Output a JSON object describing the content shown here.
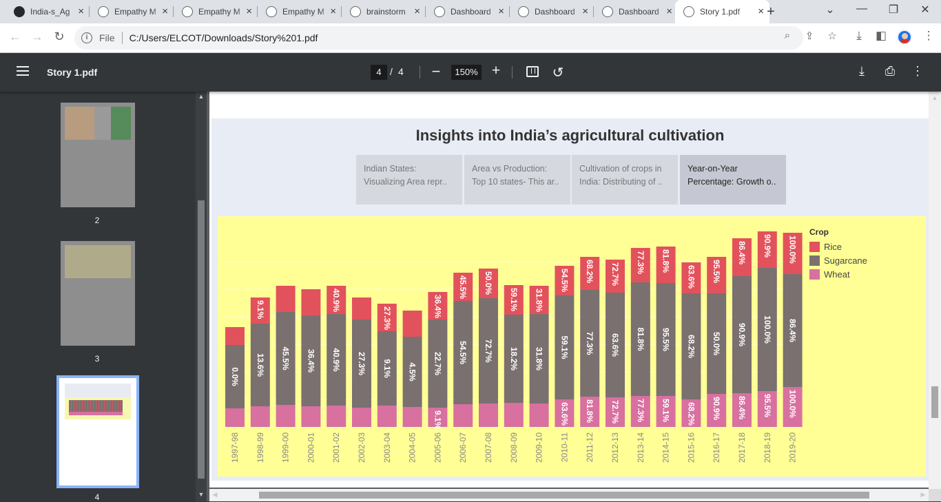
{
  "browser": {
    "tabs": [
      {
        "title": "India-s_Ag",
        "icon": "github-icon"
      },
      {
        "title": "Empathy M",
        "icon": "globe-icon"
      },
      {
        "title": "Empathy M",
        "icon": "globe-icon"
      },
      {
        "title": "Empathy M",
        "icon": "globe-icon"
      },
      {
        "title": "brainstorm",
        "icon": "globe-icon"
      },
      {
        "title": "Dashboard",
        "icon": "globe-icon"
      },
      {
        "title": "Dashboard",
        "icon": "globe-icon"
      },
      {
        "title": "Dashboard",
        "icon": "globe-icon"
      },
      {
        "title": "Story 1.pdf",
        "icon": "globe-icon"
      }
    ],
    "active_tab": 8,
    "url_protocol": "File",
    "url": "C:/Users/ELCOT/Downloads/Story%201.pdf"
  },
  "viewer": {
    "title": "Story 1.pdf",
    "current_page": "4",
    "page_sep": "/",
    "total_pages": "4",
    "zoom": "150%",
    "thumbnails": [
      "2",
      "3",
      "4"
    ]
  },
  "story": {
    "title": "Insights into India’s agricultural cultivation",
    "points": [
      {
        "line1": "Indian States:",
        "line2": "Visualizing Area repr.."
      },
      {
        "line1": "Area vs Production:",
        "line2": "Top 10 states- This ar.."
      },
      {
        "line1": "Cultivation of crops in",
        "line2": "India: Distributing of .."
      },
      {
        "line1": "Year-on-Year",
        "line2": "Percentage: Growth o.."
      }
    ],
    "selected_point": 3
  },
  "chart_data": {
    "type": "bar",
    "stacked": true,
    "categories": [
      "1997-98",
      "1998-99",
      "1999-00",
      "2000-01",
      "2001-02",
      "2002-03",
      "2003-04",
      "2004-05",
      "2005-06",
      "2006-07",
      "2007-08",
      "2008-09",
      "2009-10",
      "2010-11",
      "2011-12",
      "2012-13",
      "2013-14",
      "2014-15",
      "2015-16",
      "2016-17",
      "2017-18",
      "2018-19",
      "2019-20"
    ],
    "legend_title": "Crop",
    "legend_position": "top-right",
    "grid": true,
    "colors": {
      "Rice": "#e2525c",
      "Sugarcane": "#7a7070",
      "Wheat": "#d870a0"
    },
    "series": [
      {
        "name": "Wheat",
        "values": [
          27,
          30,
          32,
          30,
          31,
          28,
          31,
          29,
          28,
          33,
          34,
          35,
          34,
          40,
          44,
          43,
          45,
          45,
          40,
          48,
          49,
          52,
          58
        ],
        "labels": [
          "",
          "",
          "",
          "",
          "",
          "",
          "",
          "",
          "9.1%",
          "",
          "",
          "",
          "",
          "63.6%",
          "81.8%",
          "72.7%",
          "77.3%",
          "59.1%",
          "68.2%",
          "90.9%",
          "86.4%",
          "95.5%",
          "100.0%"
        ]
      },
      {
        "name": "Sugarcane",
        "values": [
          92,
          120,
          135,
          132,
          133,
          128,
          108,
          102,
          128,
          150,
          153,
          128,
          130,
          151,
          155,
          152,
          165,
          164,
          154,
          146,
          170,
          179,
          164
        ],
        "labels": [
          "0.0%",
          "13.6%",
          "45.5%",
          "36.4%",
          "40.9%",
          "27.3%",
          "9.1%",
          "4.5%",
          "22.7%",
          "54.5%",
          "72.7%",
          "18.2%",
          "31.8%",
          "59.1%",
          "77.3%",
          "63.6%",
          "81.8%",
          "95.5%",
          "68.2%",
          "50.0%",
          "90.9%",
          "100.0%",
          "86.4%"
        ]
      },
      {
        "name": "Rice",
        "values": [
          26,
          38,
          38,
          38,
          41,
          32,
          40,
          38,
          40,
          41,
          43,
          43,
          41,
          43,
          48,
          48,
          50,
          53,
          45,
          53,
          55,
          53,
          60
        ],
        "labels": [
          "",
          "9.1%",
          "",
          "",
          "40.9%",
          "",
          "27.3%",
          "",
          "36.4%",
          "45.5%",
          "50.0%",
          "59.1%",
          "31.8%",
          "54.5%",
          "68.2%",
          "72.7%",
          "77.3%",
          "81.8%",
          "63.6%",
          "95.5%",
          "86.4%",
          "90.9%",
          "100.0%"
        ]
      }
    ]
  }
}
